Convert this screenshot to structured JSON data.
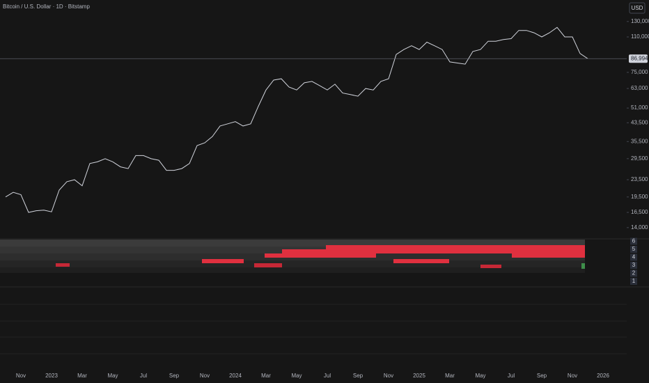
{
  "chart_data": {
    "type": "line",
    "title": "Bitcoin / U.S. Dollar · 1D · Bitstamp",
    "currency": "USD",
    "log_scale": true,
    "grid": false,
    "ylim": [
      12680,
      164000
    ],
    "yticks": [
      {
        "value": 130000,
        "label": "130,000"
      },
      {
        "value": 110000,
        "label": "110,000"
      },
      {
        "value": 75000,
        "label": "75,000"
      },
      {
        "value": 63000,
        "label": "63,000"
      },
      {
        "value": 51000,
        "label": "51,000"
      },
      {
        "value": 43500,
        "label": "43,500"
      },
      {
        "value": 35500,
        "label": "35,500"
      },
      {
        "value": 29500,
        "label": "29,500"
      },
      {
        "value": 23500,
        "label": "23,500"
      },
      {
        "value": 19500,
        "label": "19,500"
      },
      {
        "value": 16500,
        "label": "16,500"
      },
      {
        "value": 14000,
        "label": "14,000"
      }
    ],
    "last_price": {
      "value": 86994,
      "label": "86,994"
    },
    "x_labels": [
      "Nov",
      "2023",
      "Mar",
      "May",
      "Jul",
      "Sep",
      "Nov",
      "2024",
      "Mar",
      "May",
      "Jul",
      "Sep",
      "Nov",
      "2025",
      "Mar",
      "May",
      "Jul",
      "Sep",
      "Nov",
      "2026"
    ],
    "series": [
      {
        "name": "BTCUSD",
        "color": "#d1d4dc",
        "values": [
          19500,
          20500,
          20000,
          16500,
          16800,
          16900,
          16600,
          21000,
          23000,
          23500,
          22000,
          28000,
          28500,
          29500,
          28500,
          27000,
          26500,
          30500,
          30500,
          29500,
          29000,
          26000,
          26000,
          26500,
          28000,
          34000,
          35000,
          37500,
          42000,
          43000,
          44000,
          42000,
          43000,
          52000,
          62000,
          69000,
          70000,
          64000,
          62000,
          67000,
          68000,
          65000,
          62000,
          66000,
          60000,
          59000,
          58000,
          63000,
          62000,
          68000,
          70000,
          91000,
          96000,
          100000,
          96000,
          104000,
          100000,
          96000,
          84000,
          83000,
          82000,
          94000,
          96000,
          105000,
          105000,
          107000,
          108000,
          118000,
          118000,
          115000,
          110000,
          115000,
          122000,
          110000,
          110000,
          92000,
          86994
        ]
      }
    ],
    "pane_yticks": [
      1,
      2,
      3,
      4,
      5,
      6
    ]
  }
}
